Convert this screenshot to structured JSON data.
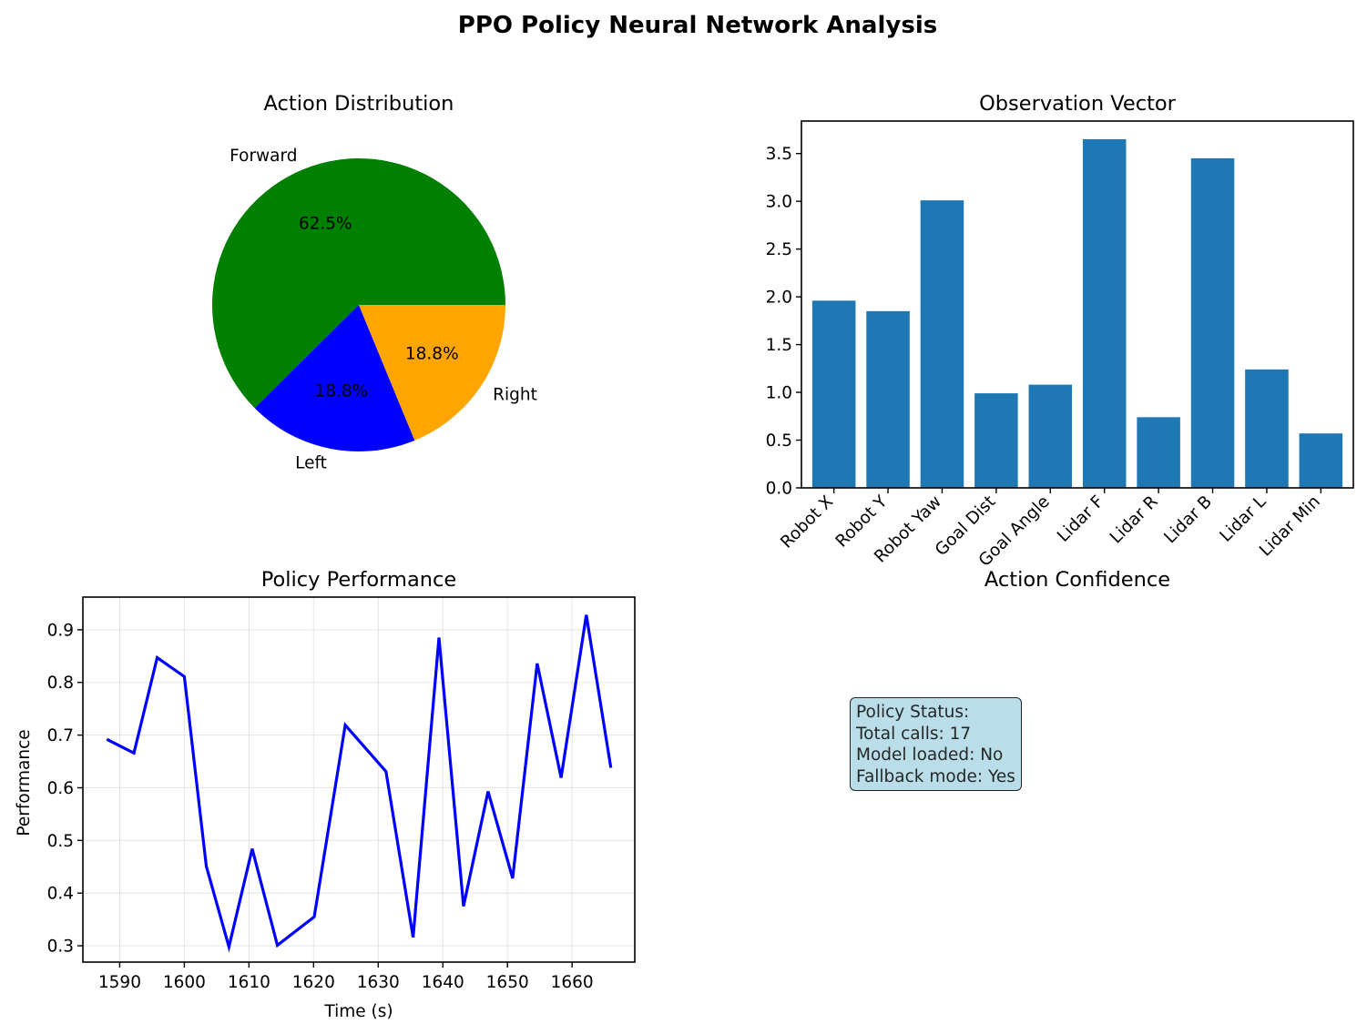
{
  "figure_title": "PPO Policy Neural Network Analysis",
  "chart_data": [
    {
      "type": "pie",
      "title": "Action Distribution",
      "labels": [
        "Forward",
        "Left",
        "Right"
      ],
      "values": [
        62.5,
        18.8,
        18.8
      ],
      "autopct": [
        "62.5%",
        "18.8%",
        "18.8%"
      ],
      "colors": [
        "#008000",
        "#0000ff",
        "#ffa500"
      ]
    },
    {
      "type": "bar",
      "title": "Observation Vector",
      "categories": [
        "Robot X",
        "Robot Y",
        "Robot Yaw",
        "Goal Dist",
        "Goal Angle",
        "Lidar F",
        "Lidar R",
        "Lidar B",
        "Lidar L",
        "Lidar Min"
      ],
      "values": [
        1.96,
        1.85,
        3.01,
        0.99,
        1.08,
        3.65,
        0.74,
        3.45,
        1.24,
        0.57
      ],
      "ylim": [
        0,
        3.84
      ],
      "yticks": [
        0.0,
        0.5,
        1.0,
        1.5,
        2.0,
        2.5,
        3.0,
        3.5
      ],
      "color": "#1f77b4",
      "xlabel": "",
      "ylabel": ""
    },
    {
      "type": "line",
      "title": "Policy Performance",
      "xlabel": "Time (s)",
      "ylabel": "Performance",
      "x": [
        1588.0,
        1592.2,
        1595.8,
        1600.0,
        1603.4,
        1606.9,
        1610.5,
        1614.4,
        1620.1,
        1624.9,
        1631.2,
        1635.4,
        1639.4,
        1643.2,
        1647.0,
        1650.8,
        1654.6,
        1658.3,
        1662.2,
        1666.0
      ],
      "y": [
        0.692,
        0.666,
        0.847,
        0.811,
        0.451,
        0.298,
        0.484,
        0.301,
        0.355,
        0.719,
        0.631,
        0.316,
        0.885,
        0.375,
        0.593,
        0.428,
        0.836,
        0.619,
        0.928,
        0.638
      ],
      "xlim": [
        1584.3,
        1669.7
      ],
      "ylim": [
        0.269,
        0.962
      ],
      "xticks": [
        1590,
        1600,
        1610,
        1620,
        1630,
        1640,
        1650,
        1660
      ],
      "yticks": [
        0.3,
        0.4,
        0.5,
        0.6,
        0.7,
        0.8,
        0.9
      ],
      "color": "#0000ff",
      "grid": true
    }
  ],
  "action_confidence": {
    "title": "Action Confidence",
    "status_lines": [
      "Policy Status:",
      "Total calls: 17",
      "Model loaded: No",
      "Fallback mode: Yes"
    ]
  }
}
